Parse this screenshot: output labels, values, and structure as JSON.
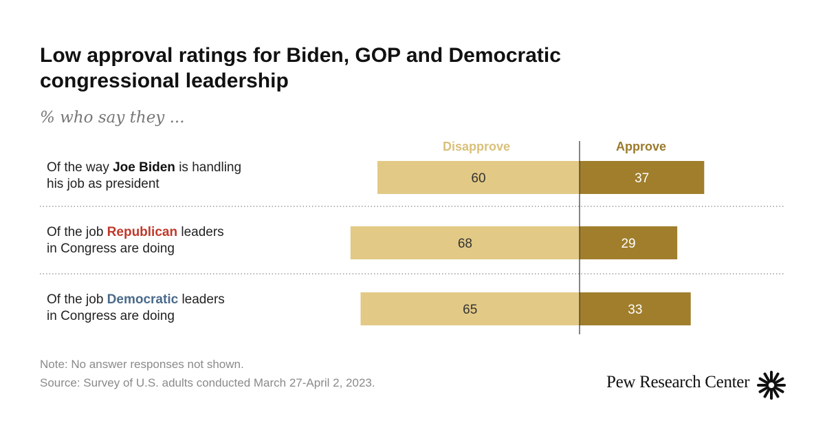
{
  "title": "Low approval ratings for Biden, GOP and Democratic congressional leadership",
  "subtitle": "% who say they ...",
  "colors": {
    "disapprove": "#e2c985",
    "approve": "#a07e2c",
    "disapprove_text": "#d9c07a",
    "approve_text": "#9a7a2c",
    "republican": "#c0392b",
    "democratic": "#4a6a8a"
  },
  "chart_data": {
    "type": "bar",
    "orientation": "horizontal-diverging",
    "series": [
      {
        "name": "Disapprove",
        "values": [
          60,
          68,
          65
        ]
      },
      {
        "name": "Approve",
        "values": [
          37,
          29,
          33
        ]
      }
    ],
    "categories": [
      "Of the way Joe Biden is handling his job as president",
      "Of the job Republican leaders in Congress are doing",
      "Of the job Democratic leaders in Congress are doing"
    ],
    "title": "Low approval ratings for Biden, GOP and Democratic congressional leadership",
    "subtitle": "% who say they ...",
    "xlabel": "",
    "ylabel": "",
    "unit": "%"
  },
  "rows": [
    {
      "pre": "Of the way ",
      "emph": "Joe Biden",
      "post": " is handling",
      "line2": "his job as president",
      "emph_color": "#111111"
    },
    {
      "pre": "Of the job ",
      "emph": "Republican",
      "post": " leaders",
      "line2": "in Congress are doing",
      "emph_color": "#c0392b"
    },
    {
      "pre": "Of the job ",
      "emph": "Democratic",
      "post": " leaders",
      "line2": "in Congress are doing",
      "emph_color": "#4a6a8a"
    }
  ],
  "footer": {
    "note": "Note: No answer responses not shown.",
    "source": "Source: Survey of U.S. adults conducted March 27-April 2, 2023.",
    "brand": "Pew Research Center"
  }
}
